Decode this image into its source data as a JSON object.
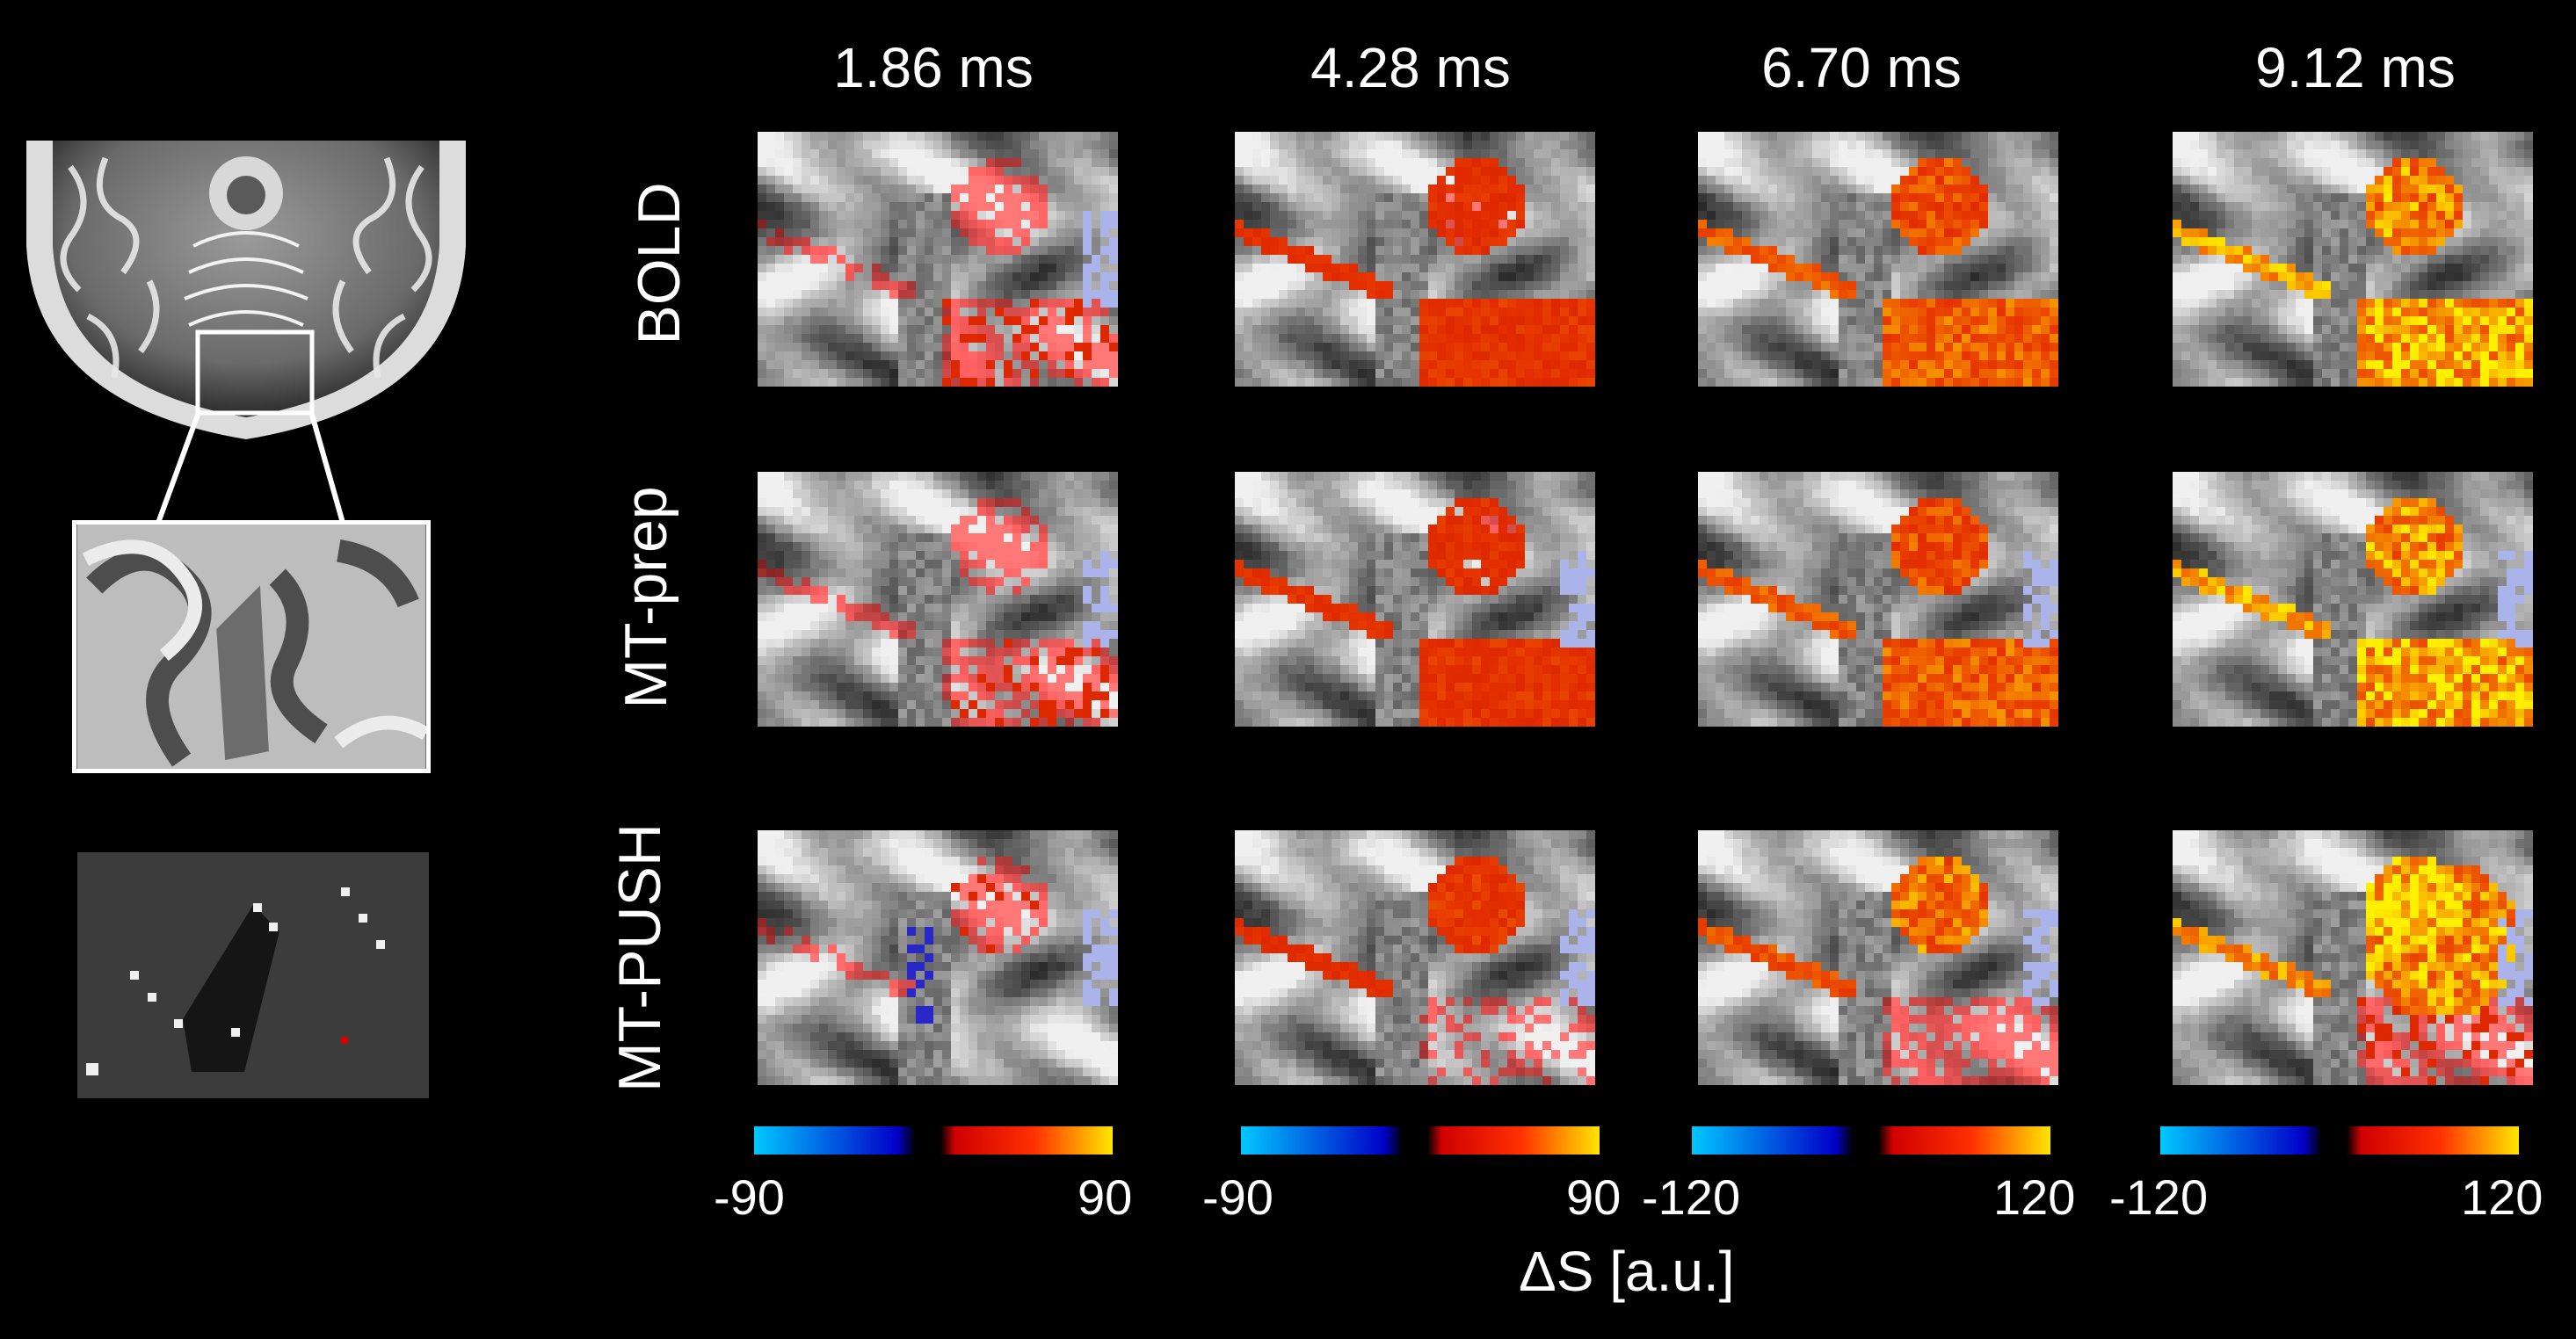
{
  "columns": [
    {
      "title": "1.86 ms",
      "cbar_min": "-90",
      "cbar_max": "90"
    },
    {
      "title": "4.28 ms",
      "cbar_min": "-90",
      "cbar_max": "90"
    },
    {
      "title": "6.70 ms",
      "cbar_min": "-120",
      "cbar_max": "120"
    },
    {
      "title": "9.12 ms",
      "cbar_min": "-120",
      "cbar_max": "120"
    }
  ],
  "rows": [
    {
      "label": "BOLD"
    },
    {
      "label": "MT-prep"
    },
    {
      "label": "MT-PUSH"
    }
  ],
  "colorbar_label": "ΔS [a.u.]",
  "colors": {
    "background": "#000000",
    "neg_low": "#00c8ff",
    "neg_high": "#0000c8",
    "pos_low": "#d00000",
    "pos_mid": "#ff3000",
    "pos_high": "#ffe600"
  }
}
